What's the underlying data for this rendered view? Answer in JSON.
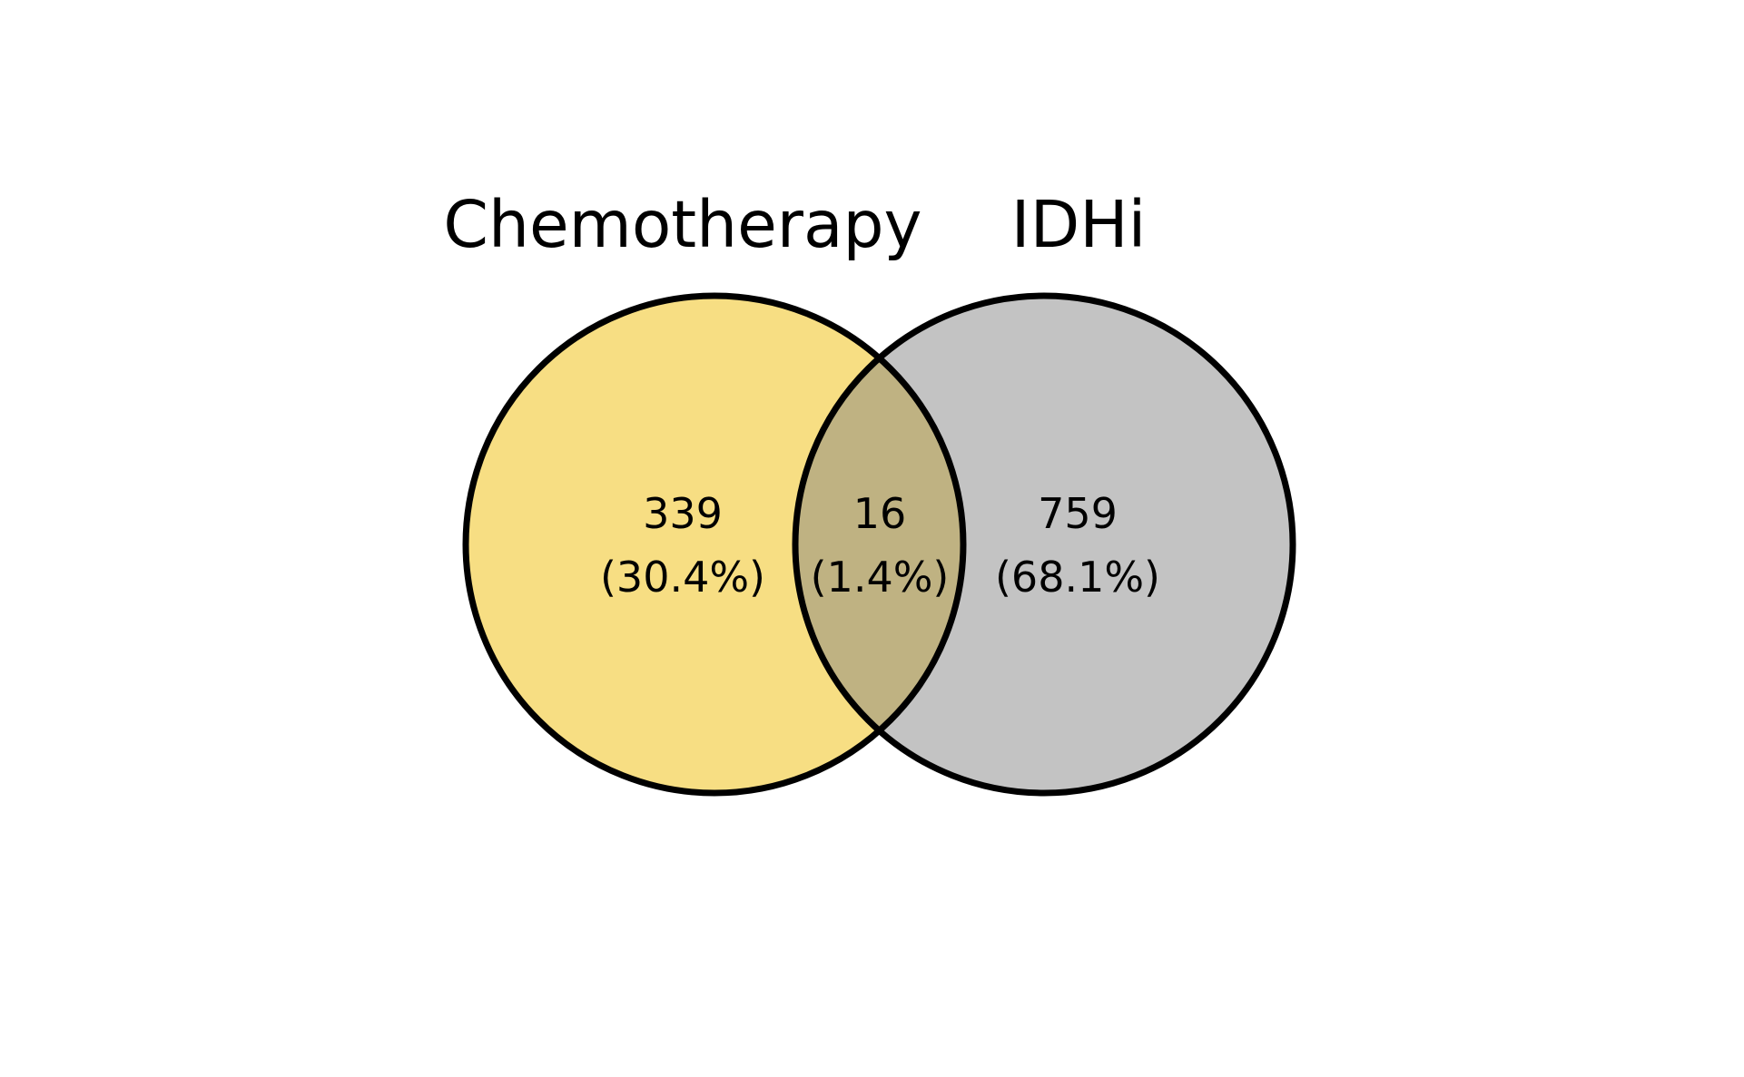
{
  "sets": [
    {
      "name": "Chemotherapy",
      "color": "#f7de83"
    },
    {
      "name": "IDHi",
      "color": "#c3c3c3"
    }
  ],
  "regions": {
    "left_only": {
      "count": "339",
      "percent": "(30.4%)"
    },
    "overlap": {
      "count": "16",
      "percent": "(1.4%)",
      "color": "#bfb282"
    },
    "right_only": {
      "count": "759",
      "percent": "(68.1%)"
    }
  },
  "outline_color": "#000000"
}
